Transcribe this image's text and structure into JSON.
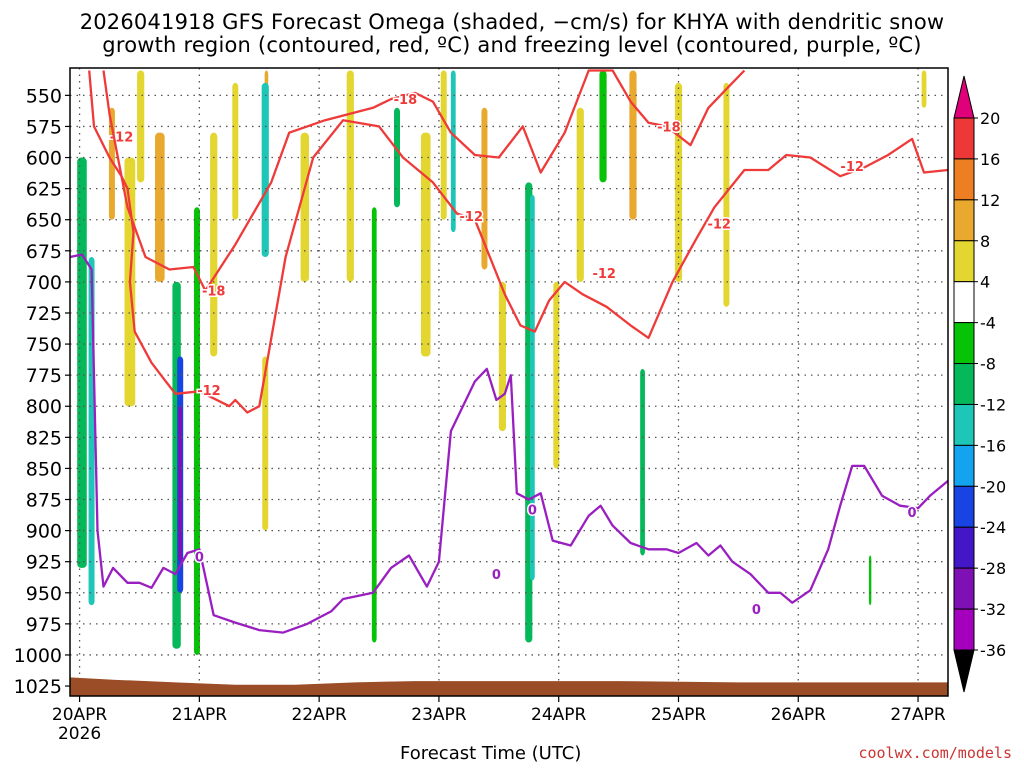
{
  "colors": {
    "dgz": "#ef3a3a",
    "freezing": "#9a1fc0",
    "ground": "#9a4d26",
    "grid": "#555555"
  },
  "chart_data": {
    "type": "time-height cross-section",
    "title_lines": [
      "2026041918 GFS Forecast Omega (shaded, −cm/s) for KHYA with dendritic snow",
      "growth region (contoured, red, ºC) and freezing level (contoured, purple, ºC)"
    ],
    "xlabel": "Forecast Time (UTC)",
    "x_ticks": [
      "20APR",
      "21APR",
      "22APR",
      "23APR",
      "24APR",
      "25APR",
      "26APR",
      "27APR"
    ],
    "x_tick_year": "2026",
    "x_range_days": [
      -0.08,
      7.25
    ],
    "y_unit": "hPa",
    "y_ticks": [
      550,
      575,
      600,
      625,
      650,
      675,
      700,
      725,
      750,
      775,
      800,
      825,
      850,
      875,
      900,
      925,
      950,
      975,
      1000,
      1025
    ],
    "y_range": [
      528,
      1033
    ],
    "colorbar": {
      "levels": [
        20,
        16,
        12,
        8,
        4,
        -4,
        -8,
        -12,
        -16,
        -20,
        -24,
        -28,
        -32,
        -36
      ],
      "colors": [
        "#e0007a",
        "#ee3838",
        "#ed7f22",
        "#e8a92e",
        "#e3d630",
        "#ffffff",
        "#06c308",
        "#05b85a",
        "#1dc6b6",
        "#14a3ee",
        "#1744e2",
        "#4316c7",
        "#7e10b6",
        "#a500bd",
        "#a8a8a8",
        "#000000"
      ]
    },
    "shading": [
      {
        "t": 0.02,
        "top": 600,
        "bot": 930,
        "w": 0.08,
        "v": -10
      },
      {
        "t": 0.1,
        "top": 680,
        "bot": 960,
        "w": 0.05,
        "v": -14
      },
      {
        "t": 0.27,
        "top": 560,
        "bot": 650,
        "w": 0.05,
        "v": 8
      },
      {
        "t": 0.42,
        "top": 600,
        "bot": 800,
        "w": 0.09,
        "v": 7
      },
      {
        "t": 0.51,
        "top": 530,
        "bot": 620,
        "w": 0.06,
        "v": 6
      },
      {
        "t": 0.67,
        "top": 580,
        "bot": 700,
        "w": 0.08,
        "v": 9
      },
      {
        "t": 0.81,
        "top": 700,
        "bot": 995,
        "w": 0.07,
        "v": -12
      },
      {
        "t": 0.84,
        "top": 760,
        "bot": 950,
        "w": 0.05,
        "v": -22
      },
      {
        "t": 0.84,
        "top": 800,
        "bot": 925,
        "w": 0.03,
        "v": -30
      },
      {
        "t": 0.98,
        "top": 640,
        "bot": 1000,
        "w": 0.05,
        "v": -8
      },
      {
        "t": 1.12,
        "top": 580,
        "bot": 760,
        "w": 0.06,
        "v": 5
      },
      {
        "t": 1.3,
        "top": 540,
        "bot": 650,
        "w": 0.05,
        "v": 6
      },
      {
        "t": 1.56,
        "top": 530,
        "bot": 580,
        "w": 0.03,
        "v": 8
      },
      {
        "t": 1.55,
        "top": 540,
        "bot": 680,
        "w": 0.06,
        "v": -14
      },
      {
        "t": 1.55,
        "top": 760,
        "bot": 900,
        "w": 0.05,
        "v": 7
      },
      {
        "t": 1.88,
        "top": 580,
        "bot": 700,
        "w": 0.07,
        "v": 6
      },
      {
        "t": 2.26,
        "top": 530,
        "bot": 700,
        "w": 0.06,
        "v": 5
      },
      {
        "t": 2.46,
        "top": 640,
        "bot": 990,
        "w": 0.04,
        "v": -8
      },
      {
        "t": 2.65,
        "top": 560,
        "bot": 640,
        "w": 0.05,
        "v": -12
      },
      {
        "t": 2.89,
        "top": 580,
        "bot": 760,
        "w": 0.08,
        "v": 6
      },
      {
        "t": 3.04,
        "top": 530,
        "bot": 650,
        "w": 0.05,
        "v": 5
      },
      {
        "t": 3.12,
        "top": 530,
        "bot": 660,
        "w": 0.04,
        "v": -14
      },
      {
        "t": 3.38,
        "top": 560,
        "bot": 690,
        "w": 0.05,
        "v": 8
      },
      {
        "t": 3.53,
        "top": 700,
        "bot": 820,
        "w": 0.06,
        "v": 5
      },
      {
        "t": 3.75,
        "top": 620,
        "bot": 990,
        "w": 0.06,
        "v": -10
      },
      {
        "t": 3.78,
        "top": 630,
        "bot": 940,
        "w": 0.04,
        "v": -16
      },
      {
        "t": 3.98,
        "top": 700,
        "bot": 850,
        "w": 0.05,
        "v": 6
      },
      {
        "t": 4.18,
        "top": 560,
        "bot": 700,
        "w": 0.06,
        "v": 5
      },
      {
        "t": 4.37,
        "top": 530,
        "bot": 620,
        "w": 0.06,
        "v": -8
      },
      {
        "t": 4.62,
        "top": 530,
        "bot": 650,
        "w": 0.06,
        "v": 9
      },
      {
        "t": 4.7,
        "top": 770,
        "bot": 920,
        "w": 0.04,
        "v": -10
      },
      {
        "t": 5.0,
        "top": 540,
        "bot": 700,
        "w": 0.06,
        "v": 7
      },
      {
        "t": 5.4,
        "top": 540,
        "bot": 720,
        "w": 0.05,
        "v": 5
      },
      {
        "t": 6.6,
        "top": 920,
        "bot": 960,
        "w": 0.02,
        "v": -8
      },
      {
        "t": 7.05,
        "top": 530,
        "bot": 560,
        "w": 0.04,
        "v": 5
      }
    ],
    "dgz_contours": [
      {
        "label": "-12",
        "label_at": [
          {
            "t": 0.35,
            "p": 583
          },
          {
            "t": 1.08,
            "p": 787
          },
          {
            "t": 3.27,
            "p": 647
          },
          {
            "t": 5.34,
            "p": 653
          },
          {
            "t": 4.38,
            "p": 693
          },
          {
            "t": 6.45,
            "p": 607
          }
        ],
        "points": [
          [
            0.08,
            530
          ],
          [
            0.12,
            575
          ],
          [
            0.25,
            600
          ],
          [
            0.35,
            615
          ],
          [
            0.4,
            625
          ],
          [
            0.45,
            660
          ],
          [
            0.42,
            700
          ],
          [
            0.46,
            740
          ],
          [
            0.6,
            765
          ],
          [
            0.72,
            780
          ],
          [
            0.8,
            790
          ],
          [
            1.0,
            788
          ],
          [
            1.25,
            800
          ],
          [
            1.3,
            795
          ],
          [
            1.4,
            805
          ],
          [
            1.5,
            800
          ],
          [
            1.72,
            680
          ],
          [
            1.95,
            600
          ],
          [
            2.2,
            570
          ],
          [
            2.5,
            575
          ],
          [
            2.7,
            600
          ],
          [
            2.95,
            620
          ],
          [
            3.15,
            645
          ],
          [
            3.3,
            650
          ],
          [
            3.55,
            710
          ],
          [
            3.68,
            735
          ],
          [
            3.8,
            740
          ],
          [
            3.92,
            715
          ],
          [
            4.05,
            700
          ],
          [
            4.2,
            710
          ],
          [
            4.4,
            720
          ],
          [
            4.6,
            735
          ],
          [
            4.75,
            745
          ],
          [
            4.95,
            700
          ],
          [
            5.15,
            665
          ],
          [
            5.3,
            640
          ],
          [
            5.55,
            610
          ],
          [
            5.75,
            610
          ],
          [
            5.9,
            598
          ],
          [
            6.1,
            600
          ],
          [
            6.35,
            615
          ],
          [
            6.55,
            608
          ],
          [
            6.75,
            598
          ],
          [
            6.95,
            585
          ],
          [
            7.05,
            612
          ],
          [
            7.25,
            610
          ]
        ]
      },
      {
        "label": "-18",
        "label_at": [
          {
            "t": 1.12,
            "p": 707
          },
          {
            "t": 2.72,
            "p": 553
          },
          {
            "t": 4.92,
            "p": 575
          }
        ],
        "points": [
          [
            0.2,
            530
          ],
          [
            0.25,
            565
          ],
          [
            0.4,
            640
          ],
          [
            0.55,
            680
          ],
          [
            0.75,
            690
          ],
          [
            0.95,
            688
          ],
          [
            1.05,
            707
          ],
          [
            1.3,
            670
          ],
          [
            1.6,
            620
          ],
          [
            1.75,
            580
          ],
          [
            1.9,
            575
          ],
          [
            2.05,
            570
          ],
          [
            2.25,
            565
          ],
          [
            2.45,
            560
          ],
          [
            2.6,
            553
          ],
          [
            2.8,
            548
          ],
          [
            2.95,
            555
          ],
          [
            3.1,
            580
          ],
          [
            3.3,
            598
          ],
          [
            3.5,
            600
          ],
          [
            3.7,
            575
          ],
          [
            3.85,
            612
          ],
          [
            4.05,
            580
          ],
          [
            4.25,
            530
          ],
          [
            4.45,
            530
          ],
          [
            4.6,
            555
          ],
          [
            4.75,
            572
          ],
          [
            4.9,
            575
          ],
          [
            5.1,
            590
          ],
          [
            5.25,
            560
          ],
          [
            5.4,
            545
          ],
          [
            5.55,
            530
          ]
        ]
      }
    ],
    "freezing_contour": {
      "label": "0",
      "label_at": [
        {
          "t": 1.0,
          "p": 921
        },
        {
          "t": 3.78,
          "p": 883
        },
        {
          "t": 5.65,
          "p": 963
        },
        {
          "t": 3.48,
          "p": 935
        },
        {
          "t": 6.95,
          "p": 885
        }
      ],
      "points": [
        [
          -0.08,
          680
        ],
        [
          0.02,
          678
        ],
        [
          0.1,
          690
        ],
        [
          0.15,
          900
        ],
        [
          0.2,
          945
        ],
        [
          0.28,
          930
        ],
        [
          0.4,
          942
        ],
        [
          0.5,
          942
        ],
        [
          0.6,
          946
        ],
        [
          0.7,
          930
        ],
        [
          0.8,
          935
        ],
        [
          0.9,
          918
        ],
        [
          1.0,
          915
        ],
        [
          1.12,
          968
        ],
        [
          1.3,
          974
        ],
        [
          1.5,
          980
        ],
        [
          1.7,
          982
        ],
        [
          1.9,
          975
        ],
        [
          2.1,
          965
        ],
        [
          2.2,
          955
        ],
        [
          2.45,
          950
        ],
        [
          2.6,
          930
        ],
        [
          2.75,
          920
        ],
        [
          2.9,
          945
        ],
        [
          3.0,
          925
        ],
        [
          3.1,
          820
        ],
        [
          3.2,
          800
        ],
        [
          3.3,
          780
        ],
        [
          3.4,
          770
        ],
        [
          3.48,
          795
        ],
        [
          3.55,
          790
        ],
        [
          3.6,
          775
        ],
        [
          3.65,
          870
        ],
        [
          3.75,
          875
        ],
        [
          3.85,
          870
        ],
        [
          3.95,
          908
        ],
        [
          4.1,
          912
        ],
        [
          4.25,
          888
        ],
        [
          4.35,
          880
        ],
        [
          4.45,
          896
        ],
        [
          4.6,
          910
        ],
        [
          4.75,
          915
        ],
        [
          4.9,
          915
        ],
        [
          5.0,
          918
        ],
        [
          5.15,
          910
        ],
        [
          5.25,
          920
        ],
        [
          5.35,
          912
        ],
        [
          5.45,
          925
        ],
        [
          5.6,
          935
        ],
        [
          5.75,
          950
        ],
        [
          5.85,
          950
        ],
        [
          5.95,
          958
        ],
        [
          6.1,
          948
        ],
        [
          6.25,
          915
        ],
        [
          6.35,
          880
        ],
        [
          6.45,
          848
        ],
        [
          6.55,
          848
        ],
        [
          6.7,
          872
        ],
        [
          6.85,
          880
        ],
        [
          7.0,
          882
        ],
        [
          7.1,
          872
        ],
        [
          7.25,
          860
        ]
      ]
    }
  }
}
